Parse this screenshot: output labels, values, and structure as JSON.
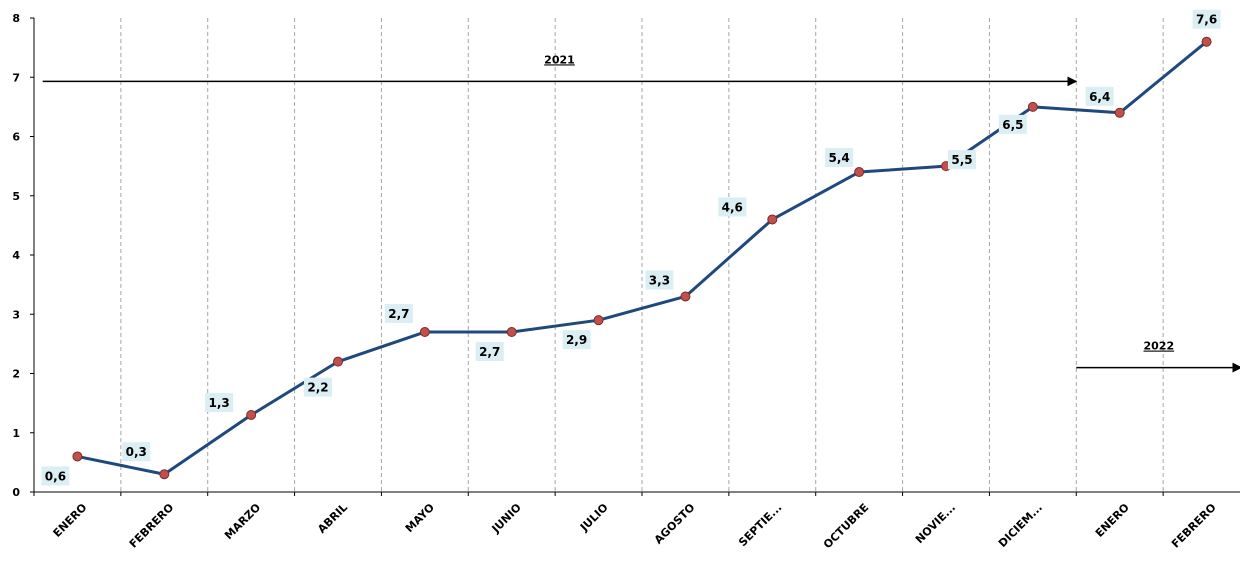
{
  "chart_data": {
    "type": "line",
    "categories": [
      "ENERO",
      "FEBRERO",
      "MARZO",
      "ABRIL",
      "MAYO",
      "JUNIO",
      "JULIO",
      "AGOSTO",
      "SEPTIE...",
      "OCTUBRE",
      "NOVIE...",
      "DICIEM...",
      "ENERO",
      "FEBRERO"
    ],
    "values": [
      0.6,
      0.3,
      1.3,
      2.2,
      2.7,
      2.7,
      2.9,
      3.3,
      4.6,
      5.4,
      5.5,
      6.5,
      6.4,
      7.6
    ],
    "data_labels": [
      "0,6",
      "0,3",
      "1,3",
      "2,2",
      "2,7",
      "2,7",
      "2,9",
      "3,3",
      "4,6",
      "5,4",
      "5,5",
      "6,5",
      "6,4",
      "7,6"
    ],
    "y_ticks": [
      "0",
      "1",
      "2",
      "3",
      "4",
      "5",
      "6",
      "7",
      "8"
    ],
    "ylim": [
      0,
      8
    ],
    "title": "",
    "xlabel": "",
    "ylabel": "",
    "grid": "vertical dashed",
    "legend": "none",
    "annotations": [
      {
        "text": "2021",
        "arrow_from_index": -0.4,
        "arrow_to_index": 11.5,
        "y": 6.93
      },
      {
        "text": "2022",
        "arrow_from_index": 11.5,
        "arrow_to_index": 13.4,
        "y": 2.1
      }
    ],
    "colors": {
      "line": "#1f497d",
      "marker": "#c0504d",
      "label_bg": "#dbeef4",
      "grid": "#a6a6a6"
    }
  }
}
